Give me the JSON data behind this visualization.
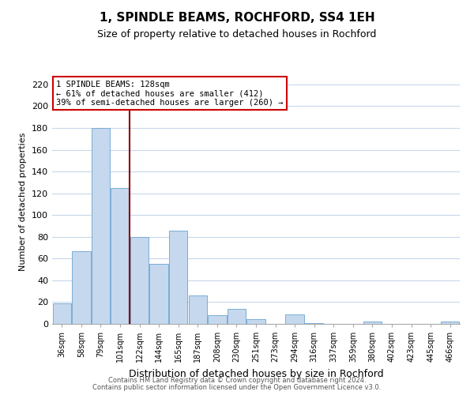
{
  "title": "1, SPINDLE BEAMS, ROCHFORD, SS4 1EH",
  "subtitle": "Size of property relative to detached houses in Rochford",
  "xlabel": "Distribution of detached houses by size in Rochford",
  "ylabel": "Number of detached properties",
  "categories": [
    "36sqm",
    "58sqm",
    "79sqm",
    "101sqm",
    "122sqm",
    "144sqm",
    "165sqm",
    "187sqm",
    "208sqm",
    "230sqm",
    "251sqm",
    "273sqm",
    "294sqm",
    "316sqm",
    "337sqm",
    "359sqm",
    "380sqm",
    "402sqm",
    "423sqm",
    "445sqm",
    "466sqm"
  ],
  "values": [
    19,
    67,
    180,
    125,
    80,
    55,
    86,
    26,
    8,
    14,
    4,
    0,
    9,
    1,
    0,
    0,
    2,
    0,
    0,
    0,
    2
  ],
  "bar_color": "#c5d8ee",
  "bar_edge_color": "#7aadd4",
  "vline_x": 3.5,
  "vline_color": "#8b0000",
  "annotation_text": "1 SPINDLE BEAMS: 128sqm\n← 61% of detached houses are smaller (412)\n39% of semi-detached houses are larger (260) →",
  "annotation_box_color": "#ffffff",
  "annotation_box_edge_color": "#cc0000",
  "ylim": [
    0,
    225
  ],
  "yticks": [
    0,
    20,
    40,
    60,
    80,
    100,
    120,
    140,
    160,
    180,
    200,
    220
  ],
  "footer_line1": "Contains HM Land Registry data © Crown copyright and database right 2024.",
  "footer_line2": "Contains public sector information licensed under the Open Government Licence v3.0.",
  "background_color": "#ffffff",
  "grid_color": "#c8d8ec",
  "title_fontsize": 11,
  "subtitle_fontsize": 9,
  "xlabel_fontsize": 9,
  "ylabel_fontsize": 8,
  "tick_fontsize": 8,
  "annot_fontsize": 7.5
}
